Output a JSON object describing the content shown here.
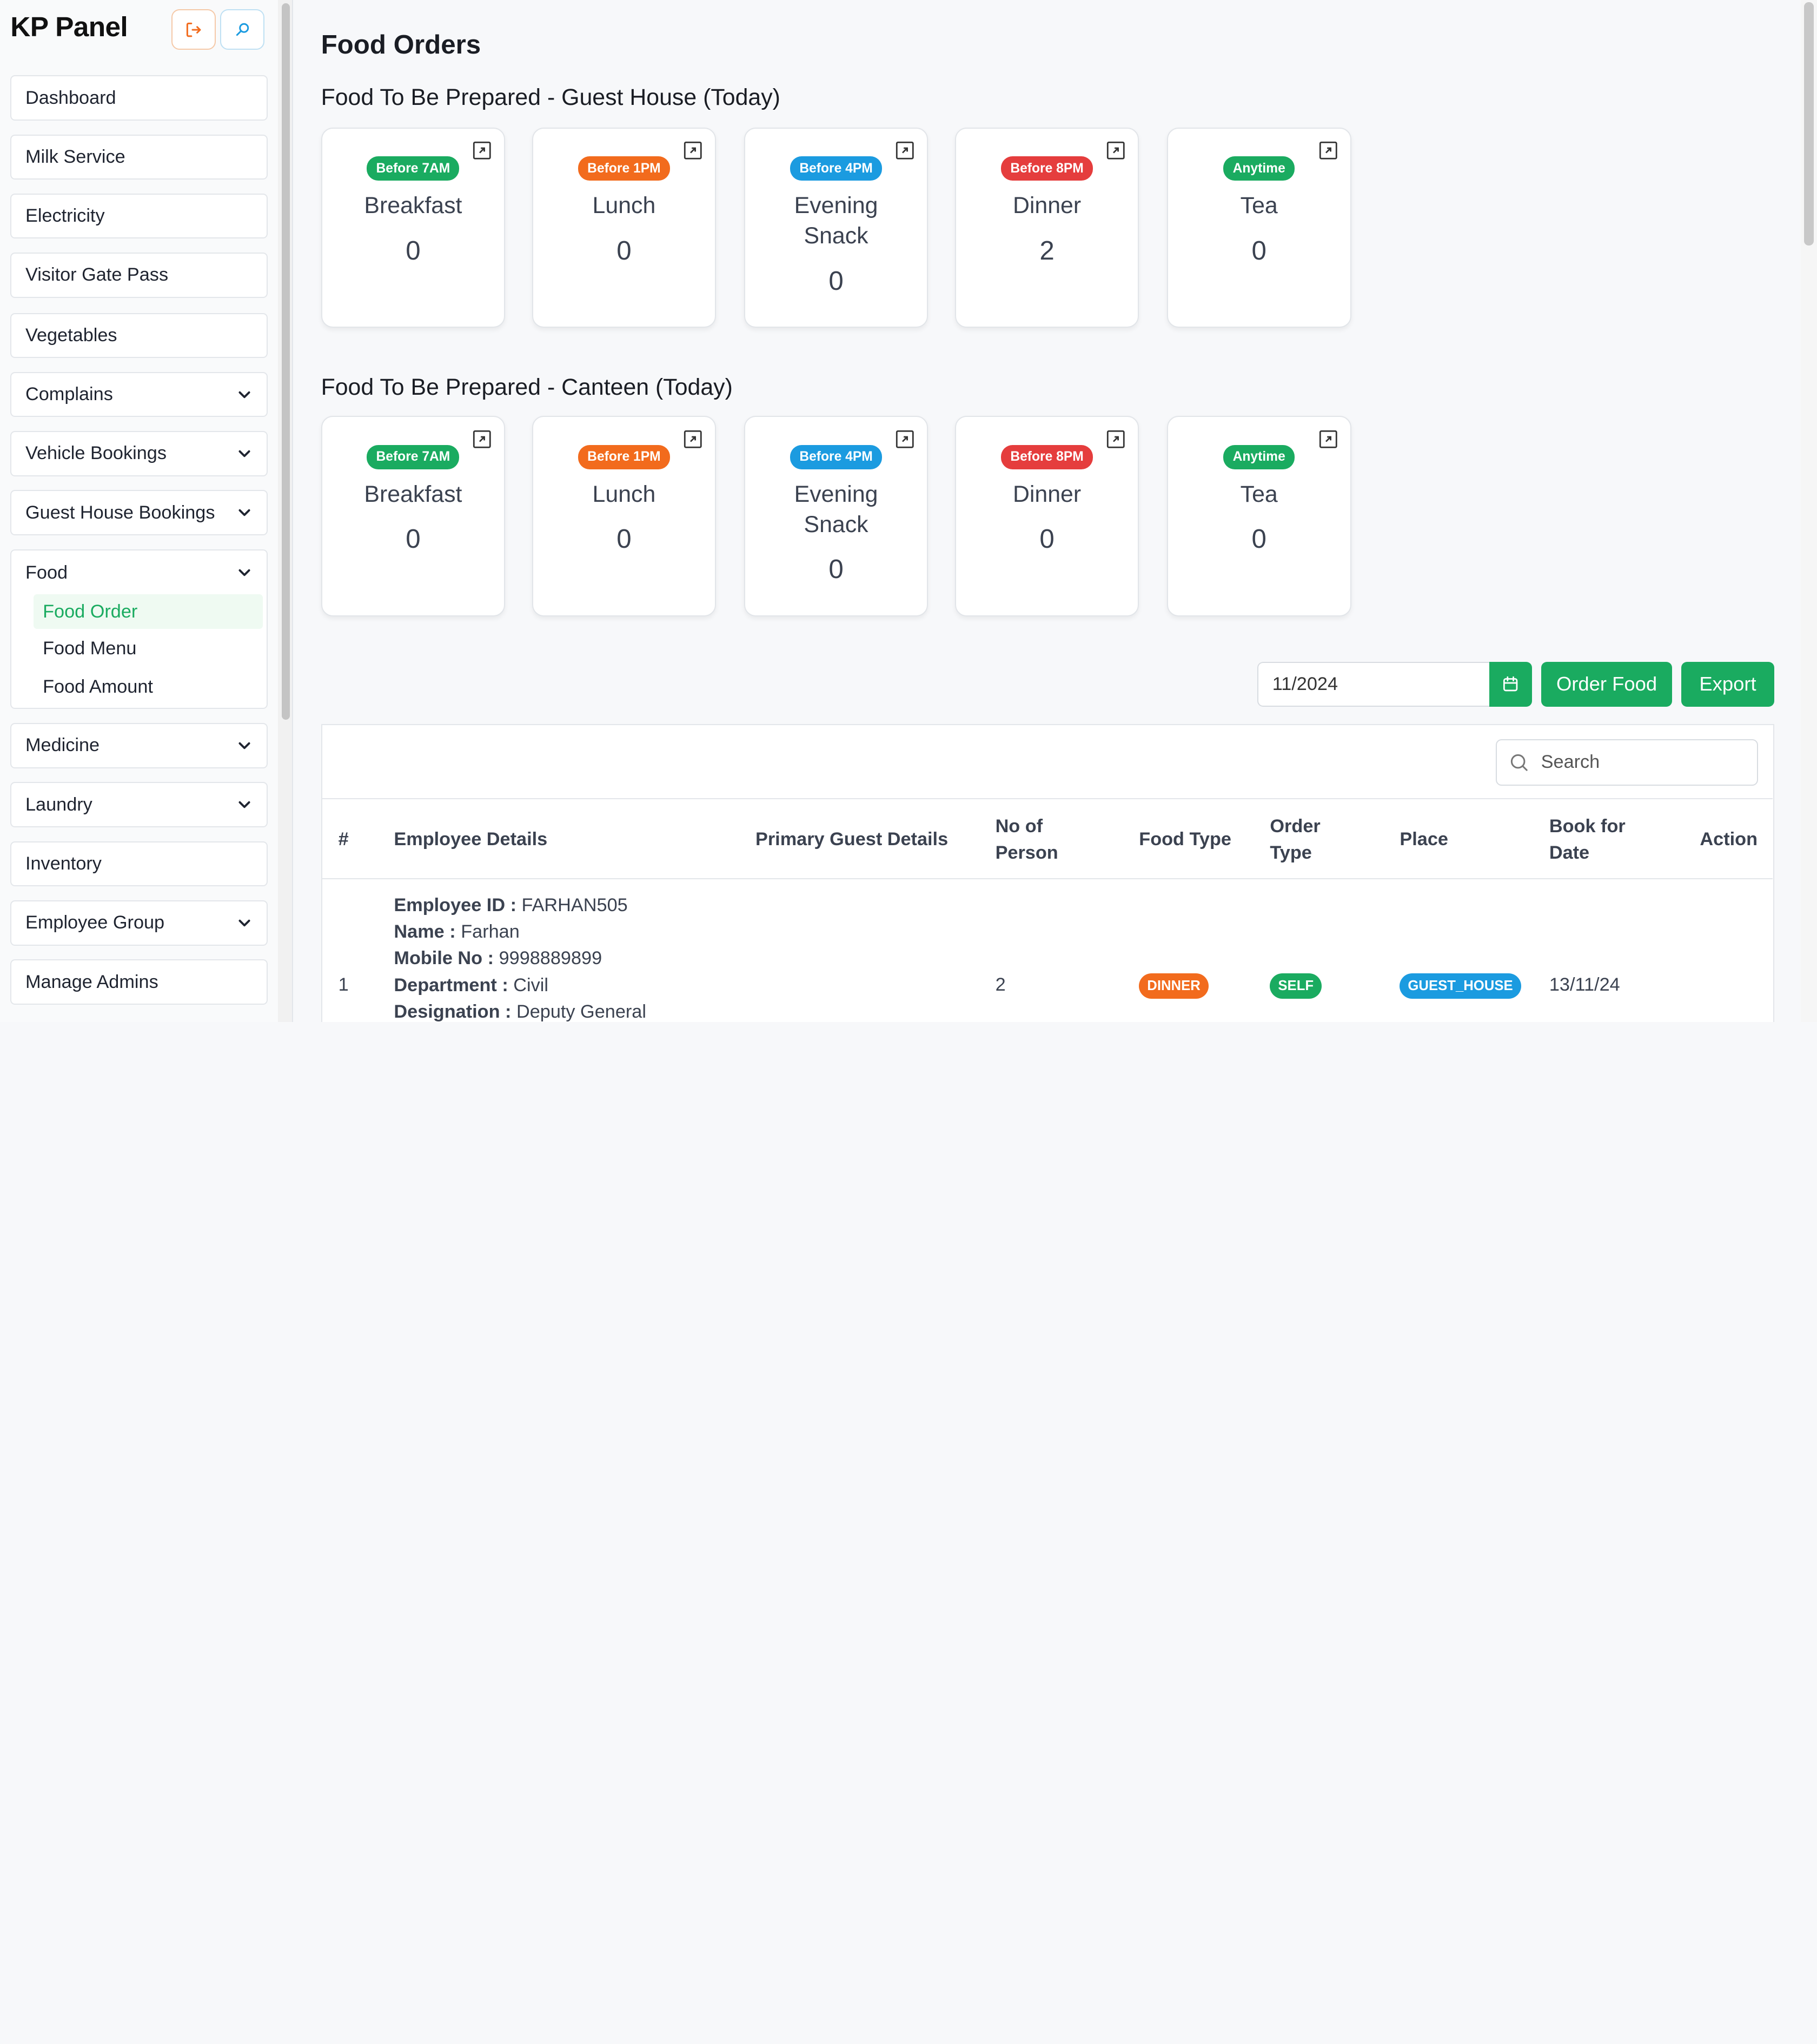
{
  "sidebar": {
    "brand": "KP Panel",
    "items": [
      {
        "label": "Dashboard"
      },
      {
        "label": "Milk Service"
      },
      {
        "label": "Electricity"
      },
      {
        "label": "Visitor Gate Pass"
      },
      {
        "label": "Vegetables"
      },
      {
        "label": "Complains"
      },
      {
        "label": "Vehicle Bookings"
      },
      {
        "label": "Guest House Bookings"
      },
      {
        "label": "Food"
      },
      {
        "label": "Medicine"
      },
      {
        "label": "Laundry"
      },
      {
        "label": "Inventory"
      },
      {
        "label": "Employee Group"
      },
      {
        "label": "Manage Admins"
      }
    ],
    "food_sub": [
      {
        "label": "Food Order"
      },
      {
        "label": "Food Menu"
      },
      {
        "label": "Food Amount"
      }
    ]
  },
  "main": {
    "title": "Food Orders",
    "guest_section": "Food To Be Prepared - Guest House (Today)",
    "canteen_section": "Food To Be Prepared - Canteen (Today)",
    "guest_cards": [
      {
        "badge": "Before 7AM",
        "name": "Breakfast",
        "count": "0"
      },
      {
        "badge": "Before 1PM",
        "name": "Lunch",
        "count": "0"
      },
      {
        "badge": "Before 4PM",
        "name": "Evening Snack",
        "count": "0"
      },
      {
        "badge": "Before 8PM",
        "name": "Dinner",
        "count": "2"
      },
      {
        "badge": "Anytime",
        "name": "Tea",
        "count": "0"
      }
    ],
    "canteen_cards": [
      {
        "badge": "Before 7AM",
        "name": "Breakfast",
        "count": "0"
      },
      {
        "badge": "Before 1PM",
        "name": "Lunch",
        "count": "0"
      },
      {
        "badge": "Before 4PM",
        "name": "Evening Snack",
        "count": "0"
      },
      {
        "badge": "Before 8PM",
        "name": "Dinner",
        "count": "0"
      },
      {
        "badge": "Anytime",
        "name": "Tea",
        "count": "0"
      }
    ],
    "badge_colors": {
      "green": "#1aab60",
      "orange": "#f26b1d",
      "blue": "#1b9be0",
      "red": "#e53d3d"
    },
    "date_value": "11/2024",
    "order_button": "Order Food",
    "export_button": "Export",
    "search_placeholder": "Search"
  },
  "table": {
    "headers": {
      "index": "#",
      "employee": "Employee Details",
      "guest": "Primary Guest Details",
      "persons_1": "No of",
      "persons_2": "Person",
      "food_type": "Food Type",
      "order_1": "Order",
      "order_2": "Type",
      "place": "Place",
      "book_1": "Book for",
      "book_2": "Date",
      "action": "Action"
    },
    "rows": [
      {
        "index": "1",
        "employee_id_label": "Employee ID :",
        "employee_id": "FARHAN505",
        "name_label": "Name :",
        "name": "Farhan",
        "mobile_label": "Mobile No :",
        "mobile": "9998889899",
        "department_label": "Department :",
        "department": "Civil",
        "designation_label": "Designation :",
        "designation": "Deputy General",
        "persons": "2",
        "food_type": "DINNER",
        "order_type": "SELF",
        "place": "GUEST_HOUSE",
        "date": "13/11/24"
      }
    ]
  }
}
